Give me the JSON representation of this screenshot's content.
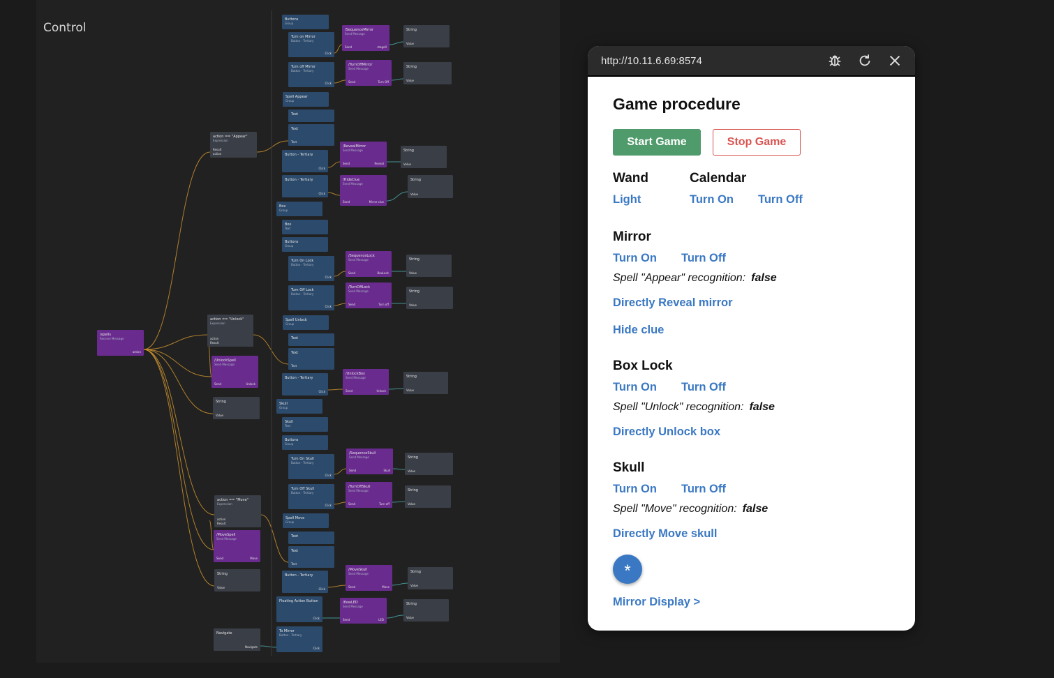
{
  "canvas": {
    "title": "Control",
    "nodes": [
      {
        "title": "Buttons",
        "sub": "Group",
        "kind": "blue"
      },
      {
        "title": "Turn on Mirror",
        "sub": "Button - Tertiary",
        "port": "Click",
        "kind": "blue"
      },
      {
        "title": "/SequenceMirror",
        "sub": "Send Message",
        "port": "Send",
        "port2": "stage0",
        "kind": "purple"
      },
      {
        "title": "String",
        "port": "Value",
        "kind": "gray"
      },
      {
        "title": "Turn off Mirror",
        "sub": "Button - Tertiary",
        "port": "Click",
        "kind": "blue"
      },
      {
        "title": "/TurnOffMirror",
        "sub": "Send Message",
        "port": "Send",
        "port2": "Turn Off",
        "kind": "purple"
      },
      {
        "title": "String",
        "port": "Value",
        "kind": "gray"
      },
      {
        "title": "Spell Appear",
        "sub": "Group",
        "kind": "blue"
      },
      {
        "title": "Text",
        "kind": "blue"
      },
      {
        "title": "Text",
        "port": "Text",
        "kind": "blue"
      },
      {
        "title": "action == \"Appear\"",
        "sub": "Expression",
        "port": "action",
        "port2": "Result",
        "kind": "gray"
      },
      {
        "title": "Button - Tertiary",
        "port": "Click",
        "kind": "blue"
      },
      {
        "title": "/RevealMirror",
        "sub": "Send Message",
        "port": "Send",
        "port2": "Reveal",
        "kind": "purple"
      },
      {
        "title": "String",
        "port": "Value",
        "kind": "gray"
      },
      {
        "title": "Button - Tertiary",
        "port": "Click",
        "kind": "blue"
      },
      {
        "title": "/HideClue",
        "sub": "Send Message",
        "port": "Send",
        "port2": "Mirror clue",
        "kind": "purple"
      },
      {
        "title": "String",
        "port": "Value",
        "kind": "gray"
      },
      {
        "title": "Box",
        "sub": "Group",
        "kind": "blue"
      },
      {
        "title": "Box",
        "sub": "Text",
        "kind": "blue"
      },
      {
        "title": "Buttons",
        "sub": "Group",
        "kind": "blue"
      },
      {
        "title": "Turn On Lock",
        "sub": "Button - Tertiary",
        "port": "Click",
        "kind": "blue"
      },
      {
        "title": "/SequenceLock",
        "sub": "Send Message",
        "port": "Send",
        "port2": "BoxLock",
        "kind": "purple"
      },
      {
        "title": "String",
        "port": "Value",
        "kind": "gray"
      },
      {
        "title": "Turn Off Lock",
        "sub": "Button - Tertiary",
        "port": "Click",
        "kind": "blue"
      },
      {
        "title": "/TurnOffLock",
        "sub": "Send Message",
        "port": "Send",
        "port2": "Turn off",
        "kind": "purple"
      },
      {
        "title": "String",
        "port": "Value",
        "kind": "gray"
      },
      {
        "title": "/spells",
        "sub": "Receive Message",
        "port": "action",
        "kind": "purple"
      },
      {
        "title": "action == \"Unlock\"",
        "sub": "Expression",
        "port": "Result",
        "port2": "action",
        "kind": "gray"
      },
      {
        "title": "Spell Unlock",
        "sub": "Group",
        "kind": "blue"
      },
      {
        "title": "Text",
        "kind": "blue"
      },
      {
        "title": "Text",
        "port": "Text",
        "kind": "blue"
      },
      {
        "title": "/UnlockSpell",
        "sub": "Send Message",
        "port": "Send",
        "port2": "Unlock",
        "kind": "purple"
      },
      {
        "title": "Button - Tertiary",
        "port": "Click",
        "kind": "blue"
      },
      {
        "title": "/UnlockBox",
        "sub": "Send Message",
        "port": "Send",
        "port2": "Unlock",
        "kind": "purple"
      },
      {
        "title": "String",
        "port": "Value",
        "kind": "gray"
      },
      {
        "title": "String",
        "port": "Value",
        "kind": "gray"
      },
      {
        "title": "Skull",
        "sub": "Group",
        "kind": "blue"
      },
      {
        "title": "Skull",
        "sub": "Text",
        "kind": "blue"
      },
      {
        "title": "Buttons",
        "sub": "Group",
        "kind": "blue"
      },
      {
        "title": "Turn On Skull",
        "sub": "Button - Tertiary",
        "port": "Click",
        "kind": "blue"
      },
      {
        "title": "/SequenceSkull",
        "sub": "Send Message",
        "port": "Send",
        "port2": "Skull",
        "kind": "purple"
      },
      {
        "title": "String",
        "port": "Value",
        "kind": "gray"
      },
      {
        "title": "Turn Off Skull",
        "sub": "Button - Tertiary",
        "port": "Click",
        "kind": "blue"
      },
      {
        "title": "/TurnOffSkull",
        "sub": "Send Message",
        "port": "Send",
        "port2": "Turn off",
        "kind": "purple"
      },
      {
        "title": "String",
        "port": "Value",
        "kind": "gray"
      },
      {
        "title": "action == \"Move\"",
        "sub": "Expression",
        "port": "Result",
        "port2": "action",
        "kind": "gray"
      },
      {
        "title": "Spell Move",
        "sub": "Group",
        "kind": "blue"
      },
      {
        "title": "/MoveSpell",
        "sub": "Send Message",
        "port": "Send",
        "port2": "Move",
        "kind": "purple"
      },
      {
        "title": "Text",
        "kind": "blue"
      },
      {
        "title": "Text",
        "port": "Text",
        "kind": "blue"
      },
      {
        "title": "String",
        "port": "Value",
        "kind": "gray"
      },
      {
        "title": "Button - Tertiary",
        "port": "Click",
        "kind": "blue"
      },
      {
        "title": "/MoveSkull",
        "sub": "Send Message",
        "port": "Send",
        "port2": "Move",
        "kind": "purple"
      },
      {
        "title": "String",
        "port": "Value",
        "kind": "gray"
      },
      {
        "title": "Floating Action Button",
        "port": "Click",
        "kind": "blue"
      },
      {
        "title": "/flowLED",
        "sub": "Send Message",
        "port": "Send",
        "port2": "LED",
        "kind": "purple"
      },
      {
        "title": "String",
        "port": "Value",
        "kind": "gray"
      },
      {
        "title": "Navigate",
        "port": "Navigate",
        "kind": "gray"
      },
      {
        "title": "To Mirror",
        "sub": "Button - Tertiary",
        "port": "Click",
        "kind": "blue"
      }
    ]
  },
  "preview": {
    "url": "http://10.11.6.69:8574",
    "icons": {
      "debug": "bug-icon",
      "refresh": "refresh-icon",
      "close": "close-icon"
    },
    "title": "Game procedure",
    "start_label": "Start Game",
    "stop_label": "Stop Game",
    "wand": {
      "heading": "Wand",
      "light": "Light"
    },
    "calendar": {
      "heading": "Calendar",
      "on": "Turn On",
      "off": "Turn Off"
    },
    "mirror": {
      "heading": "Mirror",
      "on": "Turn On",
      "off": "Turn Off",
      "status_label": "Spell \"Appear\" recognition:",
      "status_value": "false",
      "reveal": "Directly Reveal mirror",
      "hide": "Hide clue"
    },
    "boxlock": {
      "heading": "Box Lock",
      "on": "Turn On",
      "off": "Turn Off",
      "status_label": "Spell \"Unlock\" recognition:",
      "status_value": "false",
      "unlock": "Directly Unlock box"
    },
    "skull": {
      "heading": "Skull",
      "on": "Turn On",
      "off": "Turn Off",
      "status_label": "Spell \"Move\" recognition:",
      "status_value": "false",
      "move": "Directly Move skull"
    },
    "fab_symbol": "*",
    "mirror_display": "Mirror Display >",
    "colors": {
      "accent": "#3a78c3",
      "start": "#4f9b6b",
      "stop": "#d9534f",
      "node_blue": "#2c4a6b",
      "node_purple": "#6a2b8f",
      "node_gray": "#3a3e46",
      "wire": "#c9912e"
    }
  }
}
